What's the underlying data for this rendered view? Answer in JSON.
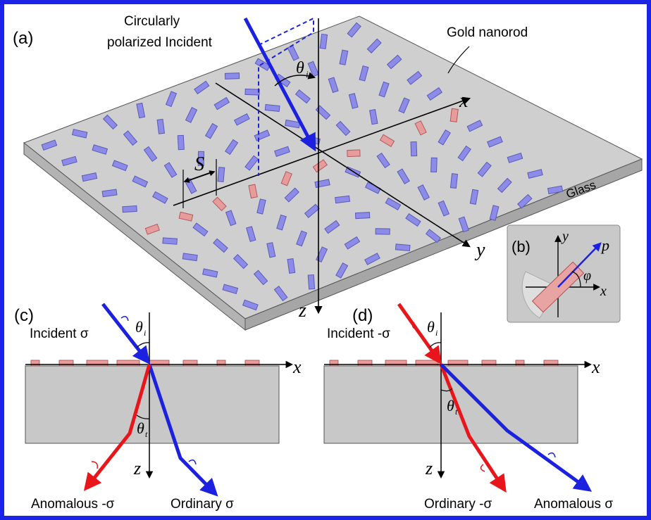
{
  "panels": {
    "a": {
      "label": "(a)",
      "incident_line1": "Circularly",
      "incident_line2": "polarized Incident",
      "gold_nanorod": "Gold nanorod",
      "glass": "Glass",
      "theta_i": "θ",
      "theta_i_sub": "i",
      "S": "S",
      "x_axis": "x",
      "y_axis": "y",
      "z_axis": "z"
    },
    "b": {
      "label": "(b)",
      "y_axis": "y",
      "x_axis": "x",
      "p": "p",
      "phi": "φ"
    },
    "c": {
      "label": "(c)",
      "incident": "Incident σ",
      "theta_i": "θ",
      "theta_i_sub": "i",
      "theta_t": "θ",
      "theta_t_sub": "t",
      "x_axis": "x",
      "z_axis": "z",
      "anomalous": "Anomalous -σ",
      "ordinary": "Ordinary σ"
    },
    "d": {
      "label": "(d)",
      "incident": "Incident -σ",
      "theta_i": "θ",
      "theta_i_sub": "i",
      "theta_t": "θ",
      "theta_t_sub": "t",
      "x_axis": "x",
      "z_axis": "z",
      "ordinary": "Ordinary -σ",
      "anomalous": "Anomalous σ"
    }
  },
  "colors": {
    "frame": "#1a23e6",
    "beam_blue": "#1c21e0",
    "beam_red": "#e8161b",
    "rod_blue": "#8c8ce8",
    "rod_red": "#e89b9b",
    "substrate": "#c8c8c8"
  }
}
